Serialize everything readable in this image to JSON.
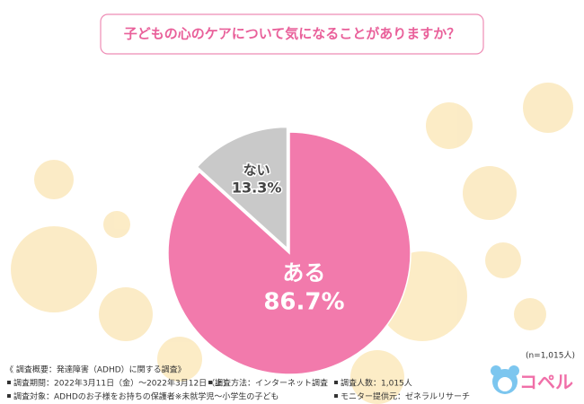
{
  "chart_data": {
    "type": "pie",
    "title": "子どもの心のケアについて気になることがありますか？",
    "categories": [
      "ある",
      "ない"
    ],
    "values": [
      86.7,
      13.3
    ],
    "value_labels": [
      "86.7%",
      "13.3%"
    ],
    "colors": [
      "#f27aac",
      "#c9c9c9"
    ],
    "sample_note": "(n=1,015人)"
  },
  "notes": {
    "heading": "《 調査概要：発達障害（ADHD）に関する調査》",
    "period": "調査期間：2022年3月11日（金）～2022年3月12日（土）",
    "method": "調査方法：インターネット調査",
    "count": "調査人数：1,015人",
    "target": "調査対象：ADHDのお子様をお持ちの保護者※未就学児～小学生の子ども",
    "provider": "モニター提供元：ゼネラルリサーチ"
  },
  "logo": "コペル"
}
